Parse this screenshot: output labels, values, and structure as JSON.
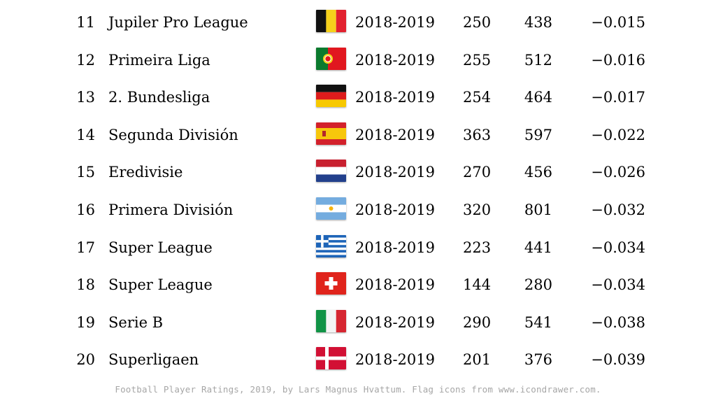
{
  "rows": [
    {
      "rank": "11",
      "league": "Jupiler Pro League",
      "flag": "belgium-flag-icon",
      "season": "2018-2019",
      "col1": "250",
      "col2": "438",
      "score": "−0.015"
    },
    {
      "rank": "12",
      "league": "Primeira Liga",
      "flag": "portugal-flag-icon",
      "season": "2018-2019",
      "col1": "255",
      "col2": "512",
      "score": "−0.016"
    },
    {
      "rank": "13",
      "league": "2. Bundesliga",
      "flag": "germany-flag-icon",
      "season": "2018-2019",
      "col1": "254",
      "col2": "464",
      "score": "−0.017"
    },
    {
      "rank": "14",
      "league": "Segunda División",
      "flag": "spain-flag-icon",
      "season": "2018-2019",
      "col1": "363",
      "col2": "597",
      "score": "−0.022"
    },
    {
      "rank": "15",
      "league": "Eredivisie",
      "flag": "netherlands-flag-icon",
      "season": "2018-2019",
      "col1": "270",
      "col2": "456",
      "score": "−0.026"
    },
    {
      "rank": "16",
      "league": "Primera División",
      "flag": "argentina-flag-icon",
      "season": "2018-2019",
      "col1": "320",
      "col2": "801",
      "score": "−0.032"
    },
    {
      "rank": "17",
      "league": "Super League",
      "flag": "greece-flag-icon",
      "season": "2018-2019",
      "col1": "223",
      "col2": "441",
      "score": "−0.034"
    },
    {
      "rank": "18",
      "league": "Super League",
      "flag": "switzerland-flag-icon",
      "season": "2018-2019",
      "col1": "144",
      "col2": "280",
      "score": "−0.034"
    },
    {
      "rank": "19",
      "league": "Serie B",
      "flag": "italy-flag-icon",
      "season": "2018-2019",
      "col1": "290",
      "col2": "541",
      "score": "−0.038"
    },
    {
      "rank": "20",
      "league": "Superligaen",
      "flag": "denmark-flag-icon",
      "season": "2018-2019",
      "col1": "201",
      "col2": "376",
      "score": "−0.039"
    }
  ],
  "footer": "Football Player Ratings, 2019, by Lars Magnus Hvattum. Flag icons from www.icondrawer.com."
}
